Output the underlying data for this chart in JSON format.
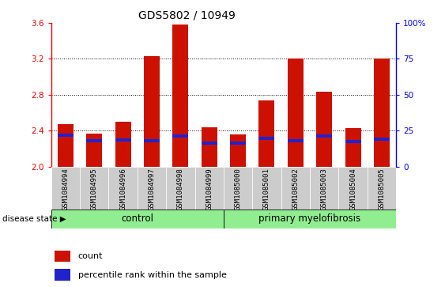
{
  "title": "GDS5802 / 10949",
  "samples": [
    "GSM1084994",
    "GSM1084995",
    "GSM1084996",
    "GSM1084997",
    "GSM1084998",
    "GSM1084999",
    "GSM1085000",
    "GSM1085001",
    "GSM1085002",
    "GSM1085003",
    "GSM1085004",
    "GSM1085005"
  ],
  "counts": [
    2.47,
    2.37,
    2.5,
    3.23,
    3.58,
    2.44,
    2.36,
    2.74,
    3.2,
    2.83,
    2.43,
    3.2
  ],
  "percentile_values": [
    2.33,
    2.27,
    2.28,
    2.27,
    2.32,
    2.24,
    2.24,
    2.3,
    2.27,
    2.32,
    2.26,
    2.29
  ],
  "percentile_heights": [
    0.035,
    0.035,
    0.035,
    0.035,
    0.035,
    0.035,
    0.035,
    0.035,
    0.035,
    0.035,
    0.035,
    0.035
  ],
  "ymin": 2.0,
  "ymax": 3.6,
  "yticks": [
    2.0,
    2.4,
    2.8,
    3.2,
    3.6
  ],
  "bar_color": "#cc1100",
  "percentile_color": "#2222cc",
  "n_control": 6,
  "n_disease": 6,
  "control_label": "control",
  "disease_label": "primary myelofibrosis",
  "disease_state_label": "disease state",
  "legend_count_label": "count",
  "legend_percentile_label": "percentile rank within the sample",
  "right_ytick_labels": [
    "0",
    "25",
    "50",
    "75",
    "100%"
  ],
  "right_ytick_positions": [
    2.0,
    2.4,
    2.8,
    3.2,
    3.6
  ],
  "group_bg_color": "#90ee90",
  "xtick_bg_color": "#cccccc"
}
